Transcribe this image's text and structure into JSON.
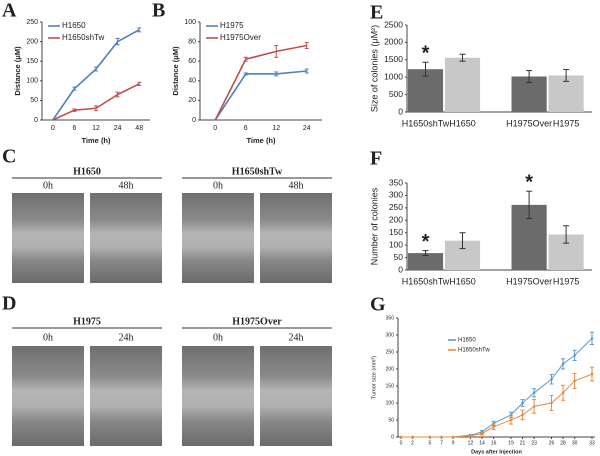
{
  "chart_data": [
    {
      "type": "line",
      "label": "A",
      "ylabel": "Distance (μM)",
      "xlabel": "Time (h)",
      "categories": [
        "0",
        "6",
        "12",
        "24",
        "48"
      ],
      "series": [
        {
          "name": "H1650",
          "color": "#4f81bd",
          "values": [
            0,
            80,
            130,
            200,
            230
          ],
          "errors": [
            0,
            4,
            5,
            8,
            5
          ]
        },
        {
          "name": "H1650shTw",
          "color": "#c0504d",
          "values": [
            0,
            25,
            30,
            65,
            92
          ],
          "errors": [
            0,
            3,
            6,
            6,
            4
          ]
        }
      ],
      "ylim": [
        0,
        250
      ],
      "yticks": [
        0,
        50,
        100,
        150,
        200,
        250
      ],
      "grid": false,
      "legend": "upper left"
    },
    {
      "type": "line",
      "label": "B",
      "ylabel": "Distance (μM)",
      "xlabel": "Time (h)",
      "categories": [
        "0",
        "6",
        "12",
        "24"
      ],
      "series": [
        {
          "name": "H1975",
          "color": "#4f81bd",
          "values": [
            0,
            47,
            47,
            50
          ],
          "errors": [
            0,
            1,
            2,
            2
          ]
        },
        {
          "name": "H1975Over",
          "color": "#c0504d",
          "values": [
            0,
            62,
            70,
            76
          ],
          "errors": [
            0,
            2,
            6,
            3
          ]
        }
      ],
      "ylim": [
        0,
        100
      ],
      "yticks": [
        0,
        20,
        40,
        60,
        80,
        100
      ],
      "grid": false,
      "legend": "upper left"
    },
    {
      "type": "bar",
      "label": "E",
      "ylabel": "Size of colonies (μM²)",
      "categories": [
        "H1650shTw",
        "H1650",
        "H1975Over",
        "H1975"
      ],
      "values": [
        1230,
        1560,
        1020,
        1050
      ],
      "errors": [
        200,
        100,
        170,
        170
      ],
      "colors": [
        "#6b6b6b",
        "#c8c8c8",
        "#6b6b6b",
        "#c8c8c8"
      ],
      "annotations": [
        {
          "text": "*",
          "category": "H1650shTw"
        }
      ],
      "ylim": [
        0,
        2500
      ],
      "yticks": [
        0,
        500,
        1000,
        1500,
        2000,
        2500
      ],
      "grid": false
    },
    {
      "type": "bar",
      "label": "F",
      "ylabel": "Number of colonies",
      "categories": [
        "H1650shTw",
        "H1650",
        "H1975Over",
        "H1975"
      ],
      "values": [
        68,
        118,
        262,
        143
      ],
      "errors": [
        10,
        32,
        55,
        35
      ],
      "colors": [
        "#6b6b6b",
        "#c8c8c8",
        "#6b6b6b",
        "#c8c8c8"
      ],
      "annotations": [
        {
          "text": "*",
          "category": "H1650shTw"
        },
        {
          "text": "*",
          "category": "H1975Over"
        }
      ],
      "ylim": [
        0,
        350
      ],
      "yticks": [
        0,
        50,
        100,
        150,
        200,
        250,
        300,
        350
      ],
      "grid": false
    },
    {
      "type": "line",
      "label": "G",
      "ylabel": "Tumor size (mm³)",
      "xlabel": "Days after Injection",
      "x": [
        0,
        2,
        5,
        7,
        9,
        12,
        14,
        16,
        19,
        21,
        23,
        26,
        28,
        30,
        33
      ],
      "series": [
        {
          "name": "H1650",
          "color": "#5b9bc9",
          "values": [
            0,
            0,
            0,
            0,
            0,
            5,
            15,
            40,
            65,
            100,
            130,
            170,
            215,
            240,
            290
          ],
          "errors": [
            0,
            0,
            0,
            0,
            0,
            2,
            4,
            6,
            8,
            10,
            12,
            14,
            15,
            15,
            18
          ]
        },
        {
          "name": "H1650shTw",
          "color": "#eb8a3c",
          "values": [
            0,
            0,
            0,
            0,
            0,
            3,
            10,
            30,
            50,
            65,
            90,
            100,
            130,
            165,
            185
          ],
          "errors": [
            0,
            0,
            0,
            0,
            0,
            2,
            4,
            8,
            12,
            14,
            20,
            22,
            22,
            22,
            20
          ]
        }
      ],
      "xlim": [
        0,
        33
      ],
      "xticks": [
        0,
        2,
        5,
        7,
        9,
        12,
        14,
        16,
        19,
        21,
        23,
        26,
        28,
        30,
        33
      ],
      "ylim": [
        0,
        350
      ],
      "yticks": [
        0,
        50,
        100,
        150,
        200,
        250,
        300,
        350
      ],
      "grid": false,
      "legend": "upper left"
    }
  ],
  "image_panels": [
    {
      "label": "C",
      "groups": [
        {
          "title": "H1650",
          "times": [
            "0h",
            "48h"
          ]
        },
        {
          "title": "H1650shTw",
          "times": [
            "0h",
            "48h"
          ]
        }
      ]
    },
    {
      "label": "D",
      "groups": [
        {
          "title": "H1975",
          "times": [
            "0h",
            "24h"
          ]
        },
        {
          "title": "H1975Over",
          "times": [
            "0h",
            "24h"
          ]
        }
      ]
    }
  ]
}
